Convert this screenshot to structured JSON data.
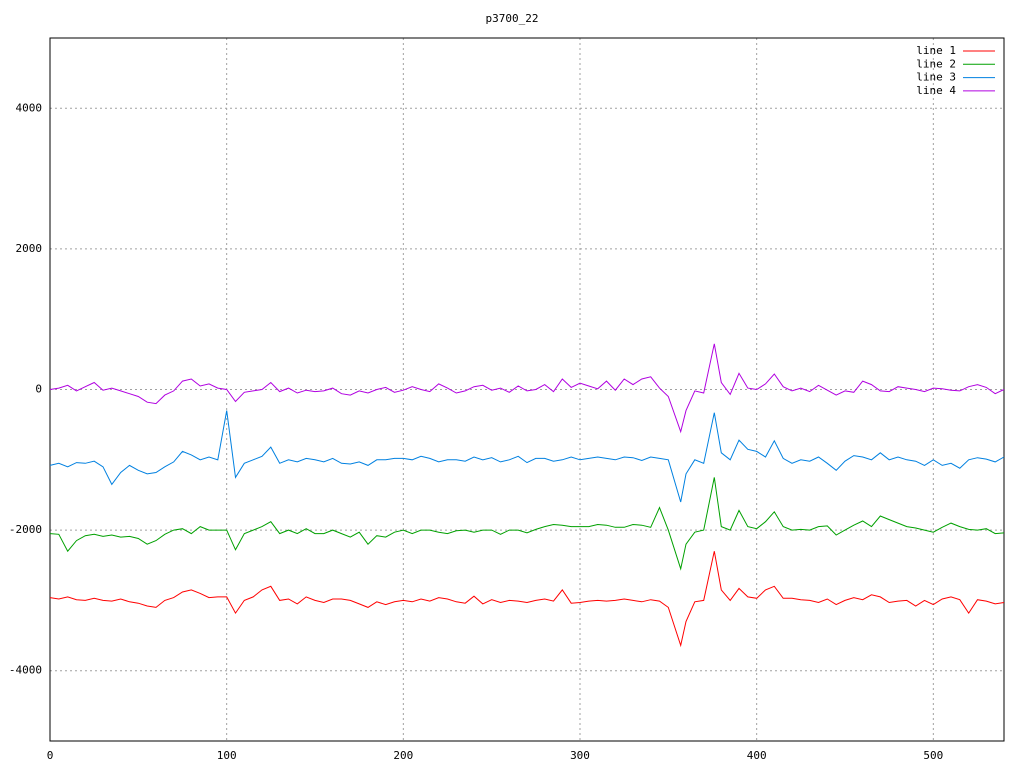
{
  "chart_data": {
    "type": "line",
    "title": "p3700_22",
    "x": [
      0,
      5,
      10,
      15,
      20,
      25,
      30,
      35,
      40,
      45,
      50,
      55,
      60,
      65,
      70,
      75,
      80,
      85,
      90,
      95,
      100,
      105,
      110,
      115,
      120,
      125,
      130,
      135,
      140,
      145,
      150,
      155,
      160,
      165,
      170,
      175,
      180,
      185,
      190,
      195,
      200,
      205,
      210,
      215,
      220,
      225,
      230,
      235,
      240,
      245,
      250,
      255,
      260,
      265,
      270,
      275,
      280,
      285,
      290,
      295,
      300,
      305,
      310,
      315,
      320,
      325,
      330,
      335,
      340,
      345,
      350,
      357,
      360,
      365,
      370,
      376,
      380,
      385,
      390,
      395,
      400,
      405,
      410,
      415,
      420,
      425,
      430,
      435,
      440,
      445,
      450,
      455,
      460,
      465,
      470,
      475,
      480,
      485,
      490,
      495,
      500,
      505,
      510,
      515,
      520,
      525,
      530,
      535,
      540
    ],
    "series": [
      {
        "name": "line 1",
        "color": "#ff0000",
        "values": [
          -2960,
          -2980,
          -2950,
          -2990,
          -3000,
          -2970,
          -3000,
          -3010,
          -2980,
          -3020,
          -3040,
          -3080,
          -3100,
          -3000,
          -2960,
          -2880,
          -2850,
          -2900,
          -2960,
          -2950,
          -2950,
          -3180,
          -3000,
          -2950,
          -2850,
          -2800,
          -3000,
          -2980,
          -3050,
          -2950,
          -3000,
          -3030,
          -2980,
          -2980,
          -3000,
          -3050,
          -3100,
          -3020,
          -3060,
          -3020,
          -3000,
          -3020,
          -2980,
          -3010,
          -2960,
          -2980,
          -3020,
          -3040,
          -2940,
          -3050,
          -2990,
          -3030,
          -3000,
          -3010,
          -3030,
          -3000,
          -2980,
          -3010,
          -2850,
          -3040,
          -3030,
          -3010,
          -3000,
          -3010,
          -3000,
          -2980,
          -3000,
          -3020,
          -2990,
          -3010,
          -3100,
          -3640,
          -3300,
          -3020,
          -3000,
          -2300,
          -2850,
          -3000,
          -2830,
          -2950,
          -2970,
          -2850,
          -2800,
          -2970,
          -2970,
          -2990,
          -3000,
          -3030,
          -2980,
          -3060,
          -3000,
          -2960,
          -2990,
          -2920,
          -2950,
          -3030,
          -3010,
          -3000,
          -3080,
          -3000,
          -3060,
          -2980,
          -2950,
          -2990,
          -3180,
          -2990,
          -3010,
          -3050,
          -3030
        ]
      },
      {
        "name": "line 2",
        "color": "#00a000",
        "values": [
          -2050,
          -2060,
          -2300,
          -2150,
          -2080,
          -2060,
          -2090,
          -2070,
          -2100,
          -2090,
          -2120,
          -2200,
          -2150,
          -2060,
          -2000,
          -1980,
          -2050,
          -1950,
          -2000,
          -2000,
          -2000,
          -2280,
          -2050,
          -2000,
          -1950,
          -1880,
          -2050,
          -2000,
          -2050,
          -1980,
          -2050,
          -2050,
          -2000,
          -2050,
          -2100,
          -2030,
          -2200,
          -2080,
          -2100,
          -2030,
          -2000,
          -2050,
          -2000,
          -2000,
          -2030,
          -2050,
          -2010,
          -2000,
          -2030,
          -2000,
          -2000,
          -2060,
          -2000,
          -2000,
          -2040,
          -1990,
          -1950,
          -1920,
          -1930,
          -1950,
          -1950,
          -1950,
          -1920,
          -1930,
          -1960,
          -1960,
          -1920,
          -1930,
          -1960,
          -1680,
          -2000,
          -2550,
          -2200,
          -2030,
          -2000,
          -1250,
          -1950,
          -2000,
          -1720,
          -1950,
          -1980,
          -1880,
          -1740,
          -1950,
          -2000,
          -1990,
          -2000,
          -1950,
          -1940,
          -2070,
          -2000,
          -1930,
          -1870,
          -1950,
          -1800,
          -1850,
          -1900,
          -1950,
          -1970,
          -2000,
          -2030,
          -1960,
          -1900,
          -1950,
          -1990,
          -2000,
          -1980,
          -2050,
          -2040
        ]
      },
      {
        "name": "line 3",
        "color": "#0080e0",
        "values": [
          -1080,
          -1050,
          -1100,
          -1040,
          -1050,
          -1020,
          -1100,
          -1350,
          -1180,
          -1080,
          -1150,
          -1200,
          -1180,
          -1100,
          -1030,
          -880,
          -930,
          -1000,
          -960,
          -1000,
          -300,
          -1250,
          -1050,
          -1000,
          -950,
          -820,
          -1050,
          -1000,
          -1030,
          -980,
          -1000,
          -1030,
          -980,
          -1050,
          -1060,
          -1030,
          -1080,
          -1000,
          -1000,
          -980,
          -980,
          -1000,
          -950,
          -980,
          -1030,
          -1000,
          -1000,
          -1020,
          -960,
          -1000,
          -970,
          -1030,
          -1000,
          -950,
          -1040,
          -980,
          -980,
          -1020,
          -1000,
          -960,
          -1000,
          -980,
          -960,
          -980,
          -1000,
          -960,
          -970,
          -1010,
          -960,
          -980,
          -1000,
          -1600,
          -1200,
          -1000,
          -1050,
          -330,
          -900,
          -1000,
          -720,
          -850,
          -880,
          -960,
          -730,
          -980,
          -1050,
          -1000,
          -1020,
          -960,
          -1050,
          -1150,
          -1020,
          -940,
          -960,
          -1000,
          -900,
          -1000,
          -960,
          -1000,
          -1020,
          -1080,
          -1000,
          -1080,
          -1050,
          -1120,
          -1000,
          -970,
          -990,
          -1030,
          -960
        ]
      },
      {
        "name": "line 4",
        "color": "#b000e0",
        "values": [
          0,
          20,
          60,
          -20,
          40,
          100,
          -10,
          20,
          -20,
          -60,
          -100,
          -180,
          -200,
          -80,
          -20,
          120,
          150,
          50,
          80,
          20,
          0,
          -170,
          -40,
          -20,
          0,
          100,
          -30,
          20,
          -50,
          -10,
          -30,
          -20,
          20,
          -60,
          -80,
          -20,
          -50,
          0,
          30,
          -40,
          -10,
          40,
          0,
          -30,
          80,
          20,
          -50,
          -20,
          40,
          60,
          -10,
          20,
          -40,
          50,
          -20,
          0,
          70,
          -30,
          150,
          30,
          90,
          50,
          10,
          120,
          -10,
          150,
          70,
          150,
          180,
          20,
          -100,
          -600,
          -300,
          -20,
          -50,
          650,
          100,
          -70,
          230,
          20,
          0,
          80,
          220,
          40,
          -20,
          20,
          -30,
          60,
          -10,
          -80,
          -20,
          -40,
          120,
          70,
          -20,
          -30,
          40,
          20,
          0,
          -30,
          20,
          10,
          -10,
          -20,
          40,
          70,
          30,
          -60,
          0
        ]
      }
    ],
    "xlim": [
      0,
      540
    ],
    "xticks": [
      0,
      100,
      200,
      300,
      400,
      500
    ],
    "ylim": [
      -5000,
      5000
    ],
    "yticks": [
      -4000,
      -2000,
      0,
      2000,
      4000
    ],
    "grid": true,
    "legend": "top-right"
  }
}
